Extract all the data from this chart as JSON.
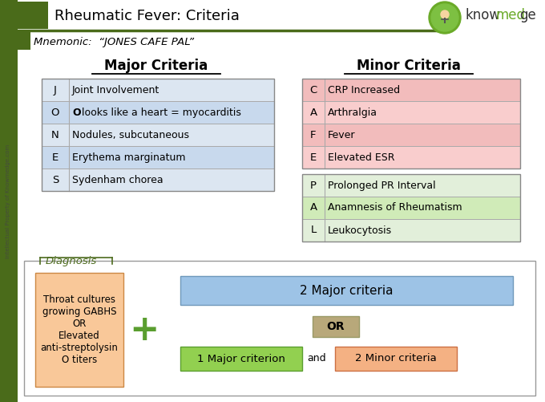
{
  "title": "Rheumatic Fever: Criteria",
  "mnemonic": "Mnemonic:  “JONES CAFE PAL”",
  "major_criteria_title": "Major Criteria",
  "minor_criteria_title": "Minor Criteria",
  "major_rows": [
    [
      "J",
      "Joint Involvement"
    ],
    [
      "O",
      "O looks like a heart = myocarditis"
    ],
    [
      "N",
      "Nodules, subcutaneous"
    ],
    [
      "E",
      "Erythema marginatum"
    ],
    [
      "S",
      "Sydenham chorea"
    ]
  ],
  "major_row_colors": [
    "#dce6f1",
    "#c8d9ed",
    "#dce6f1",
    "#c8d9ed",
    "#dce6f1"
  ],
  "minor_red_rows": [
    [
      "C",
      "CRP Increased"
    ],
    [
      "A",
      "Arthralgia"
    ],
    [
      "F",
      "Fever"
    ],
    [
      "E",
      "Elevated ESR"
    ]
  ],
  "minor_red_colors": [
    "#f2bcbc",
    "#f9cdcd",
    "#f2bcbc",
    "#f9cdcd"
  ],
  "minor_green_rows": [
    [
      "P",
      "Prolonged PR Interval"
    ],
    [
      "A",
      "Anamnesis of Rheumatism"
    ],
    [
      "L",
      "Leukocytosis"
    ]
  ],
  "minor_green_colors": [
    "#e2efda",
    "#d0ebb8",
    "#e2efda"
  ],
  "diagnosis_label": "Diagnosis",
  "throat_text": "Throat cultures\ngrowing GABHS\nOR\nElevated\nanti-streptolysin\nO titers",
  "box1_text": "2 Major criteria",
  "box2_text": "OR",
  "box3_text": "1 Major criterion",
  "box4_text": "and",
  "box5_text": "2 Minor criteria",
  "dark_green": "#4a6b1a",
  "olive_green": "#4d6b1e",
  "side_text": "Intellectual Property of Knowmedge.com",
  "throat_box_color": "#f9c899",
  "major_criteria_box_color": "#9dc3e6",
  "minor_criterion_box_color": "#92d050",
  "minor_criteria_box2_color": "#f4b183",
  "or_box_color": "#b8a87a",
  "fig_w": 6.8,
  "fig_h": 5.01,
  "dpi": 100
}
